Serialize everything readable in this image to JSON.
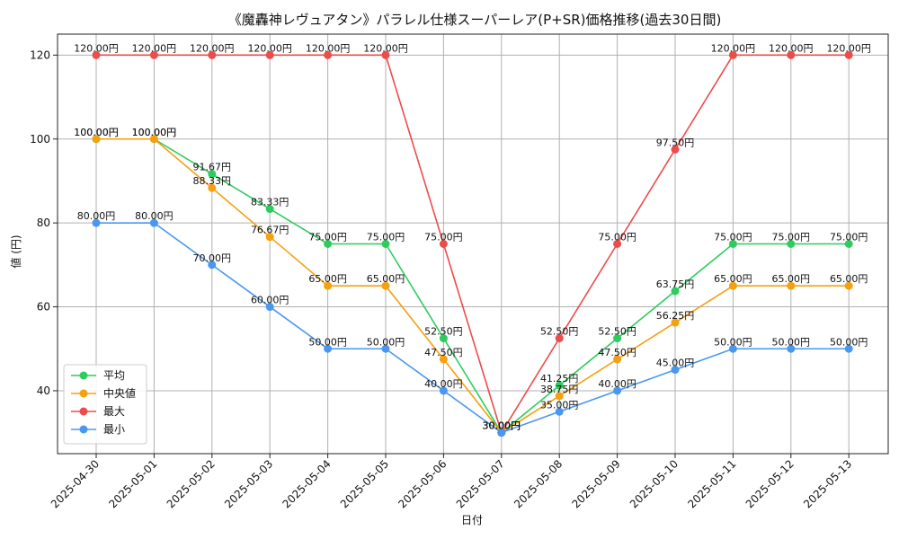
{
  "chart_data": {
    "type": "line",
    "title": "《魔轟神レヴュアタン》パラレル仕様スーパーレア(P+SR)価格推移(過去30日間)",
    "xlabel": "日付",
    "ylabel": "値 (円)",
    "ylim": [
      25,
      125
    ],
    "yticks": [
      40,
      60,
      80,
      100,
      120
    ],
    "grid": true,
    "legend_position": "lower-left",
    "value_suffix": "円",
    "categories": [
      "2025-04-30",
      "2025-05-01",
      "2025-05-02",
      "2025-05-03",
      "2025-05-04",
      "2025-05-05",
      "2025-05-06",
      "2025-05-07",
      "2025-05-08",
      "2025-05-09",
      "2025-05-10",
      "2025-05-11",
      "2025-05-12",
      "2025-05-13"
    ],
    "series": [
      {
        "name": "平均",
        "color": "#2ecc5f",
        "values": [
          100,
          100,
          91.67,
          83.33,
          75,
          75,
          52.5,
          30,
          41.25,
          52.5,
          63.75,
          75,
          75,
          75
        ]
      },
      {
        "name": "中央値",
        "color": "#f5a00f",
        "values": [
          100,
          100,
          88.33,
          76.67,
          65,
          65,
          47.5,
          30,
          38.75,
          47.5,
          56.25,
          65,
          65,
          65
        ]
      },
      {
        "name": "最大",
        "color": "#ee4b4b",
        "values": [
          120,
          120,
          120,
          120,
          120,
          120,
          75,
          30,
          52.5,
          75,
          97.5,
          120,
          120,
          120
        ]
      },
      {
        "name": "最小",
        "color": "#4a97f0",
        "values": [
          80,
          80,
          70,
          60,
          50,
          50,
          40,
          30,
          35,
          40,
          45,
          50,
          50,
          50
        ]
      }
    ]
  }
}
